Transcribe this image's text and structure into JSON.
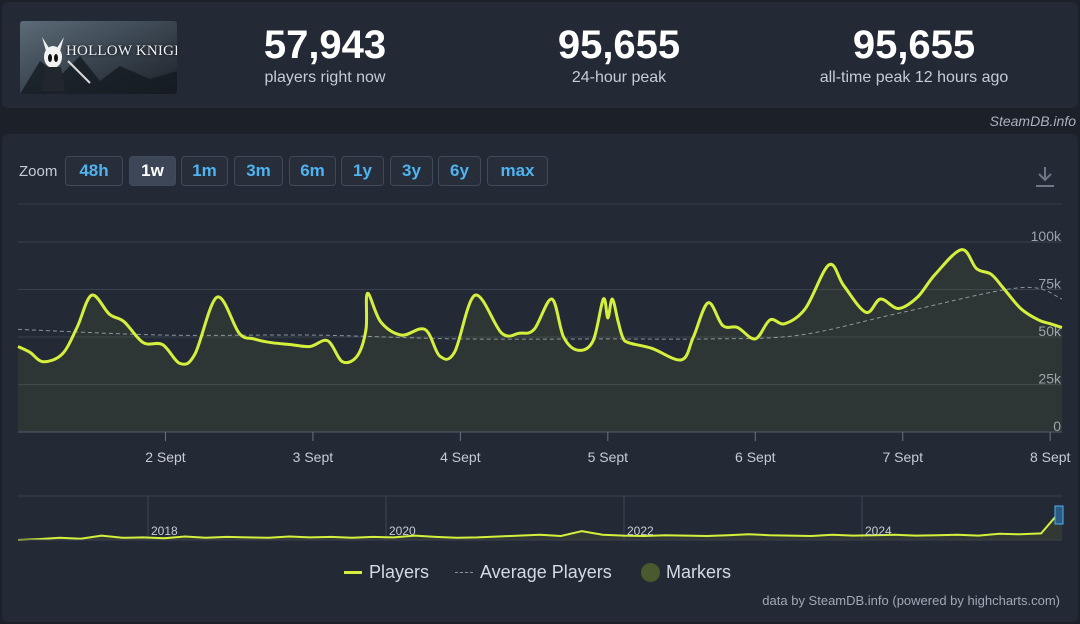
{
  "game": {
    "cover_title": "HOLLOW KNIGHT"
  },
  "stats": [
    {
      "value": "57,943",
      "label": "players right now"
    },
    {
      "value": "95,655",
      "label": "24-hour peak"
    },
    {
      "value": "95,655",
      "label": "all-time peak 12 hours ago"
    }
  ],
  "credit_top": "SteamDB.info",
  "zoom": {
    "label": "Zoom",
    "buttons": [
      "48h",
      "1w",
      "1m",
      "3m",
      "6m",
      "1y",
      "3y",
      "6y",
      "max"
    ],
    "active": "1w"
  },
  "icons": {
    "download": "download-icon"
  },
  "colors": {
    "players": "#d4f03c",
    "average": "#8a93a0",
    "markers": "#4a5a2e",
    "accent": "#4fb3f0"
  },
  "chart_data": {
    "type": "line",
    "y_ticks": [
      "0",
      "25k",
      "50k",
      "75k",
      "100k"
    ],
    "ylim": [
      0,
      100000
    ],
    "x_ticks": [
      "2 Sept",
      "3 Sept",
      "4 Sept",
      "5 Sept",
      "6 Sept",
      "7 Sept",
      "8 Sept"
    ],
    "xlim_days": [
      0,
      7.08
    ],
    "grid": true,
    "legend_position": "bottom",
    "series": [
      {
        "name": "Players",
        "x": [
          0,
          0.08,
          0.17,
          0.3,
          0.4,
          0.5,
          0.62,
          0.72,
          0.85,
          0.98,
          1.1,
          1.2,
          1.35,
          1.5,
          1.6,
          1.72,
          1.85,
          1.98,
          2.1,
          2.2,
          2.3,
          2.36,
          2.37,
          2.46,
          2.6,
          2.76,
          2.86,
          2.96,
          3.1,
          3.28,
          3.4,
          3.5,
          3.62,
          3.7,
          3.8,
          3.9,
          3.97,
          4.0,
          4.03,
          4.07,
          4.1,
          4.14,
          4.3,
          4.5,
          4.58,
          4.68,
          4.78,
          4.88,
          5.0,
          5.1,
          5.2,
          5.34,
          5.5,
          5.6,
          5.75,
          5.85,
          5.97,
          6.1,
          6.22,
          6.4,
          6.5,
          6.6,
          6.68,
          6.8,
          6.92,
          7.0,
          7.08
        ],
        "values": [
          45000,
          42000,
          37000,
          41000,
          55000,
          72000,
          62000,
          58000,
          47000,
          46000,
          36000,
          41000,
          71000,
          52000,
          49000,
          47000,
          46000,
          45000,
          48000,
          37000,
          40000,
          54000,
          73000,
          58000,
          51000,
          54000,
          40000,
          42000,
          72000,
          52000,
          52000,
          54000,
          70000,
          50000,
          43000,
          48000,
          70000,
          60000,
          70000,
          58000,
          50000,
          47000,
          44000,
          38000,
          50000,
          68000,
          56000,
          55000,
          49000,
          59000,
          57000,
          65000,
          88000,
          77000,
          63000,
          70000,
          65000,
          71000,
          83000,
          96000,
          86000,
          83000,
          76000,
          65000,
          59000,
          57000,
          55000
        ]
      },
      {
        "name": "Average Players",
        "x": [
          0,
          1,
          2,
          3,
          4,
          4.7,
          5.3,
          6,
          6.8,
          7.08
        ],
        "values": [
          54000,
          51000,
          51000,
          49000,
          49000,
          49000,
          51000,
          63000,
          76000,
          70000
        ]
      }
    ],
    "navigator": {
      "year_labels": [
        "2018",
        "2020",
        "2022",
        "2024"
      ],
      "values": [
        0.0,
        0.02,
        0.05,
        0.03,
        0.1,
        0.05,
        0.06,
        0.04,
        0.08,
        0.05,
        0.07,
        0.06,
        0.05,
        0.08,
        0.06,
        0.07,
        0.05,
        0.07,
        0.06,
        0.1,
        0.07,
        0.05,
        0.06,
        0.08,
        0.1,
        0.12,
        0.09,
        0.2,
        0.12,
        0.1,
        0.09,
        0.11,
        0.1,
        0.09,
        0.11,
        0.13,
        0.11,
        0.1,
        0.09,
        0.12,
        0.1,
        0.11,
        0.12,
        0.1,
        0.11,
        0.12,
        0.1,
        0.14,
        0.13,
        0.15,
        0.7
      ]
    }
  },
  "legend": [
    "Players",
    "Average Players",
    "Markers"
  ],
  "credit_bottom": "data by SteamDB.info (powered by highcharts.com)"
}
